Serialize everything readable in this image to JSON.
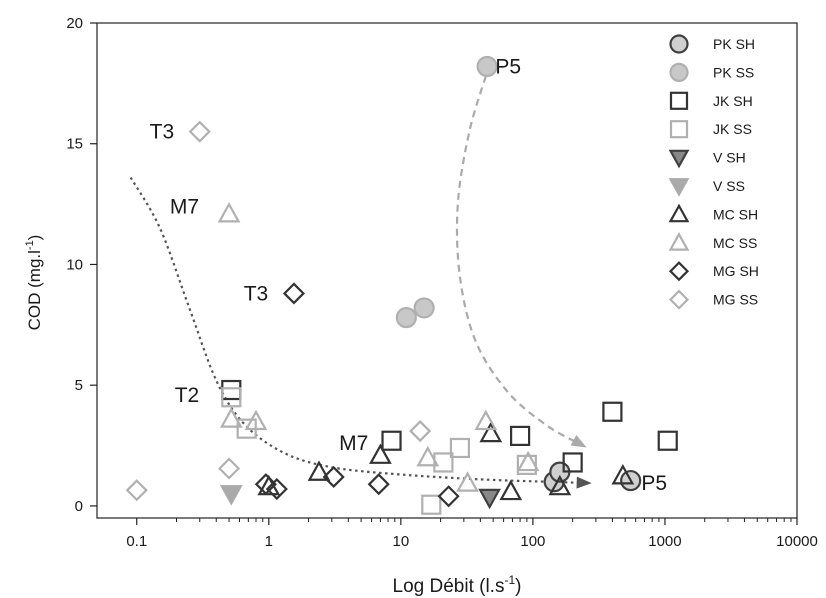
{
  "chart_data": {
    "type": "scatter",
    "xscale": "log",
    "xlim": [
      0.05,
      10000
    ],
    "ylim": [
      -0.5,
      20
    ],
    "xlabel": "Log Débit (l.s",
    "xlabel_sup": "-1",
    "xlabel_end": ")",
    "ylabel": "COD (mg.l",
    "ylabel_sup": "-1",
    "ylabel_end": ")",
    "xticks": [
      {
        "value": 0.1,
        "label": "0.1"
      },
      {
        "value": 1,
        "label": "1"
      },
      {
        "value": 10,
        "label": "10"
      },
      {
        "value": 100,
        "label": "100"
      },
      {
        "value": 1000,
        "label": "1000"
      },
      {
        "value": 10000,
        "label": "10000"
      }
    ],
    "yticks": [
      {
        "value": 0,
        "label": "0"
      },
      {
        "value": 5,
        "label": "5"
      },
      {
        "value": 10,
        "label": "10"
      },
      {
        "value": 15,
        "label": "15"
      },
      {
        "value": 20,
        "label": "20"
      }
    ],
    "grid": false,
    "legend_position": "top-right",
    "series": [
      {
        "name": "PK SH",
        "marker": "circle",
        "fill": "#d0d0d0",
        "stroke": "#404040",
        "points": [
          [
            145,
            1.0
          ],
          [
            160,
            1.4
          ],
          [
            550,
            1.05
          ]
        ]
      },
      {
        "name": "PK SS",
        "marker": "circle",
        "fill": "#c8c8c8",
        "stroke": "#b0b0b0",
        "points": [
          [
            11,
            7.8
          ],
          [
            15,
            8.2
          ],
          [
            45,
            18.2
          ]
        ]
      },
      {
        "name": "JK SH",
        "marker": "square",
        "fill": "none",
        "stroke": "#333333",
        "points": [
          [
            0.52,
            4.8
          ],
          [
            8.5,
            2.7
          ],
          [
            80,
            2.9
          ],
          [
            200,
            1.8
          ],
          [
            400,
            3.9
          ],
          [
            1050,
            2.7
          ]
        ]
      },
      {
        "name": "JK SS",
        "marker": "square",
        "fill": "none",
        "stroke": "#b0b0b0",
        "points": [
          [
            0.52,
            4.5
          ],
          [
            0.68,
            3.2
          ],
          [
            17,
            0.05
          ],
          [
            21,
            1.8
          ],
          [
            28,
            2.4
          ],
          [
            90,
            1.7
          ]
        ]
      },
      {
        "name": "V SH",
        "marker": "triangle-down",
        "fill": "#888888",
        "stroke": "#404040",
        "points": [
          [
            47,
            0.35
          ]
        ]
      },
      {
        "name": "V SS",
        "marker": "triangle-down",
        "fill": "#aaaaaa",
        "stroke": "#aaaaaa",
        "points": [
          [
            0.52,
            0.5
          ]
        ]
      },
      {
        "name": "MC SH",
        "marker": "triangle-up",
        "fill": "none",
        "stroke": "#333333",
        "points": [
          [
            1.0,
            0.8
          ],
          [
            2.4,
            1.4
          ],
          [
            7,
            2.1
          ],
          [
            48,
            3.0
          ],
          [
            68,
            0.6
          ],
          [
            160,
            0.8
          ],
          [
            480,
            1.25
          ]
        ]
      },
      {
        "name": "MC SS",
        "marker": "triangle-up",
        "fill": "none",
        "stroke": "#b0b0b0",
        "points": [
          [
            0.5,
            12.1
          ],
          [
            0.52,
            3.6
          ],
          [
            0.8,
            3.5
          ],
          [
            16,
            2.0
          ],
          [
            32,
            0.95
          ],
          [
            44,
            3.5
          ],
          [
            92,
            1.8
          ]
        ]
      },
      {
        "name": "MG SH",
        "marker": "diamond",
        "fill": "none",
        "stroke": "#333333",
        "points": [
          [
            1.55,
            8.8
          ],
          [
            0.95,
            0.9
          ],
          [
            1.15,
            0.7
          ],
          [
            3.1,
            1.2
          ],
          [
            6.8,
            0.9
          ],
          [
            23,
            0.4
          ]
        ]
      },
      {
        "name": "MG SS",
        "marker": "diamond",
        "fill": "none",
        "stroke": "#b0b0b0",
        "points": [
          [
            0.3,
            15.5
          ],
          [
            0.1,
            0.65
          ],
          [
            0.5,
            1.55
          ],
          [
            14,
            3.1
          ]
        ]
      }
    ],
    "annotations": [
      {
        "text": "P5",
        "x": 65,
        "y": 18.2
      },
      {
        "text": "T3",
        "x": 0.155,
        "y": 15.5
      },
      {
        "text": "M7",
        "x": 0.23,
        "y": 12.4
      },
      {
        "text": "T3",
        "x": 0.8,
        "y": 8.8
      },
      {
        "text": "T2",
        "x": 0.24,
        "y": 4.6
      },
      {
        "text": "M7",
        "x": 4.4,
        "y": 2.6
      },
      {
        "text": "P5",
        "x": 830,
        "y": 0.95
      }
    ],
    "trend_lines": [
      {
        "style": "dotted",
        "color": "#555555",
        "points": [
          [
            0.09,
            13.6
          ],
          [
            0.15,
            11.5
          ],
          [
            0.25,
            8.2
          ],
          [
            0.4,
            5.2
          ],
          [
            0.65,
            3.4
          ],
          [
            1.3,
            2.2
          ],
          [
            3,
            1.6
          ],
          [
            10,
            1.3
          ],
          [
            40,
            1.1
          ],
          [
            130,
            1.0
          ],
          [
            260,
            0.95
          ]
        ]
      },
      {
        "style": "dashed",
        "color": "#aaaaaa",
        "points": [
          [
            44,
            17.8
          ],
          [
            33,
            15.5
          ],
          [
            27,
            12.5
          ],
          [
            28,
            9.5
          ],
          [
            37,
            6.8
          ],
          [
            65,
            4.7
          ],
          [
            130,
            3.3
          ],
          [
            240,
            2.5
          ]
        ]
      }
    ]
  }
}
